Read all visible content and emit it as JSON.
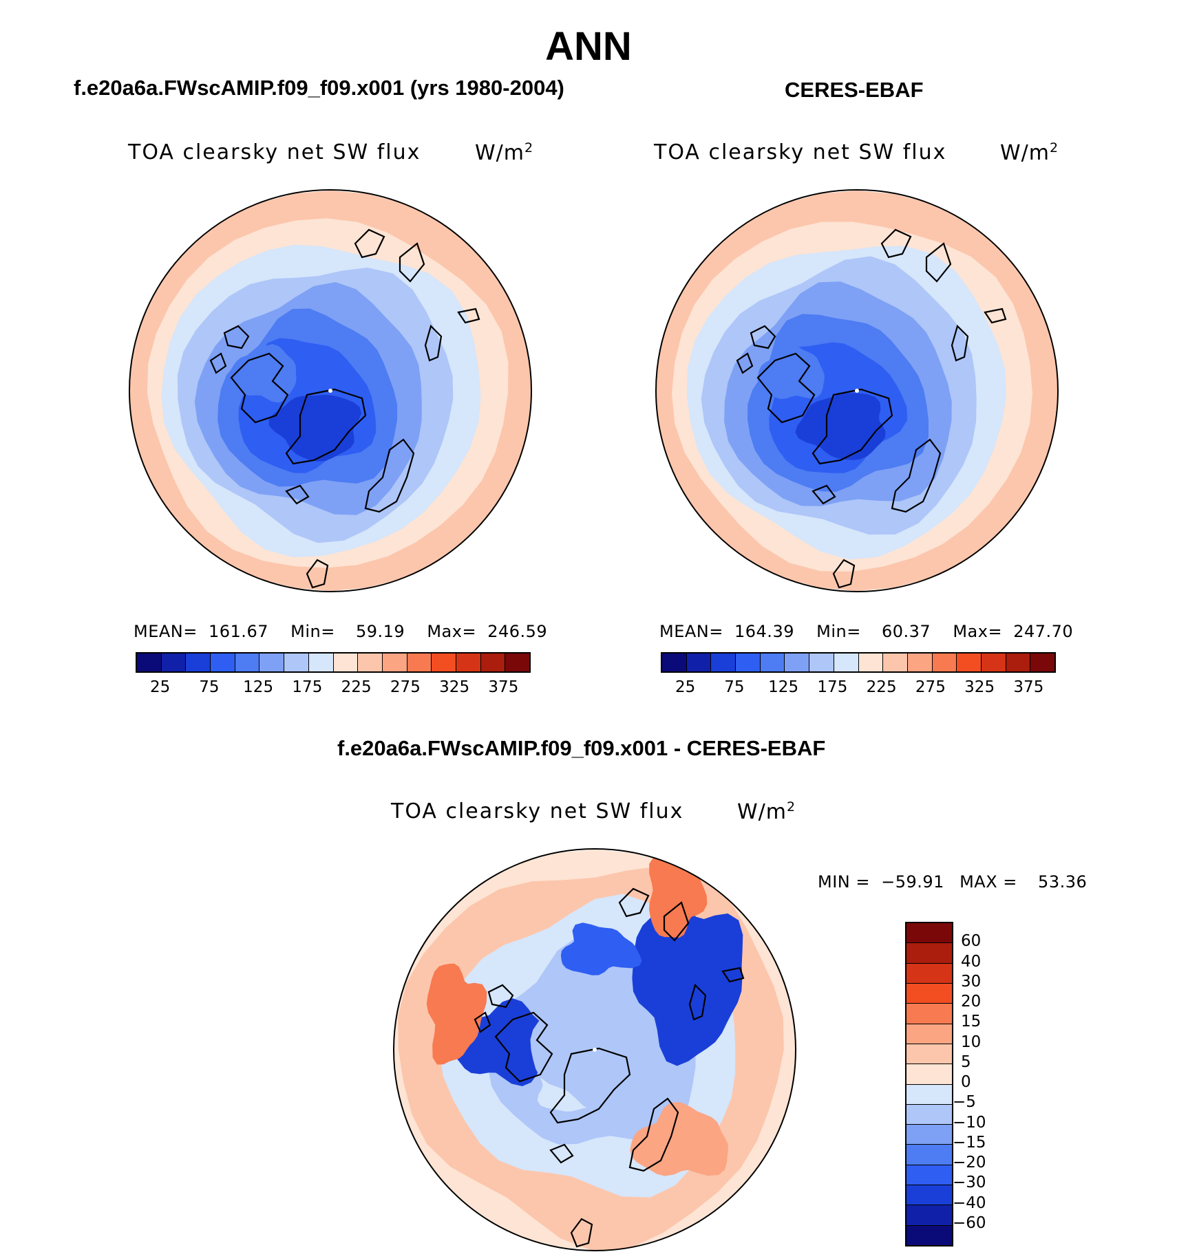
{
  "title": "ANN",
  "panels": {
    "model": {
      "title": "f.e20a6a.FWscAMIP.f09_f09.x001 (yrs 1980-2004)",
      "variable": "TOA clearsky net SW flux",
      "units_base": "W/m",
      "units_exp": "2",
      "stats": {
        "mean_label": "MEAN=",
        "mean": "161.67",
        "min_label": "Min=",
        "min": "59.19",
        "max_label": "Max=",
        "max": "246.59"
      }
    },
    "obs": {
      "title": "CERES-EBAF",
      "variable": "TOA clearsky net SW flux",
      "units_base": "W/m",
      "units_exp": "2",
      "stats": {
        "mean_label": "MEAN=",
        "mean": "164.39",
        "min_label": "Min=",
        "min": "60.37",
        "max_label": "Max=",
        "max": "247.70"
      }
    },
    "diff": {
      "title": "f.e20a6a.FWscAMIP.f09_f09.x001 - CERES-EBAF",
      "variable": "TOA clearsky net SW flux",
      "units_base": "W/m",
      "units_exp": "2",
      "stats": {
        "min_label": "MIN =",
        "min": "−59.91",
        "max_label": "MAX =",
        "max": "53.36"
      }
    }
  },
  "chart_data": [
    {
      "type": "heatmap",
      "projection": "north-polar-stereographic",
      "title": "f.e20a6a.FWscAMIP.f09_f09.x001 (yrs 1980-2004)",
      "variable": "TOA clearsky net SW flux",
      "units": "W/m2",
      "mean": 161.67,
      "min": 59.19,
      "max": 246.59,
      "levels": [
        25,
        50,
        75,
        100,
        125,
        150,
        175,
        200,
        225,
        250,
        275,
        300,
        325,
        350,
        375
      ],
      "colorbar_tick_labels": [
        "25",
        "75",
        "125",
        "175",
        "225",
        "275",
        "325",
        "375"
      ],
      "colorbar_orientation": "horizontal",
      "colors": [
        "#0a0a78",
        "#1020a8",
        "#1a3fd8",
        "#2f5ef2",
        "#4d7cf3",
        "#7ea1f5",
        "#aec6f8",
        "#d6e6fb",
        "#fde4d4",
        "#fcc6ac",
        "#fba583",
        "#f87a50",
        "#f34e22",
        "#d53416",
        "#ab1d0c",
        "#7a0808"
      ]
    },
    {
      "type": "heatmap",
      "projection": "north-polar-stereographic",
      "title": "CERES-EBAF",
      "variable": "TOA clearsky net SW flux",
      "units": "W/m2",
      "mean": 164.39,
      "min": 60.37,
      "max": 247.7,
      "levels": [
        25,
        50,
        75,
        100,
        125,
        150,
        175,
        200,
        225,
        250,
        275,
        300,
        325,
        350,
        375
      ],
      "colorbar_tick_labels": [
        "25",
        "75",
        "125",
        "175",
        "225",
        "275",
        "325",
        "375"
      ],
      "colorbar_orientation": "horizontal",
      "colors": [
        "#0a0a78",
        "#1020a8",
        "#1a3fd8",
        "#2f5ef2",
        "#4d7cf3",
        "#7ea1f5",
        "#aec6f8",
        "#d6e6fb",
        "#fde4d4",
        "#fcc6ac",
        "#fba583",
        "#f87a50",
        "#f34e22",
        "#d53416",
        "#ab1d0c",
        "#7a0808"
      ]
    },
    {
      "type": "heatmap",
      "projection": "north-polar-stereographic",
      "title": "f.e20a6a.FWscAMIP.f09_f09.x001 - CERES-EBAF",
      "variable": "TOA clearsky net SW flux",
      "units": "W/m2",
      "min": -59.91,
      "max": 53.36,
      "levels": [
        60,
        40,
        30,
        20,
        15,
        10,
        5,
        0,
        -5,
        -10,
        -15,
        -20,
        -30,
        -40,
        -60
      ],
      "colorbar_tick_labels": [
        "60",
        "40",
        "30",
        "20",
        "15",
        "10",
        "5",
        "0",
        "−5",
        "−10",
        "−15",
        "−20",
        "−30",
        "−40",
        "−60"
      ],
      "colorbar_orientation": "vertical",
      "colors": [
        "#7a0808",
        "#ab1d0c",
        "#d53416",
        "#f34e22",
        "#f87a50",
        "#fba583",
        "#fcc6ac",
        "#fde4d4",
        "#d6e6fb",
        "#aec6f8",
        "#7ea1f5",
        "#4d7cf3",
        "#2f5ef2",
        "#1a3fd8",
        "#1020a8",
        "#0a0a78"
      ]
    }
  ]
}
